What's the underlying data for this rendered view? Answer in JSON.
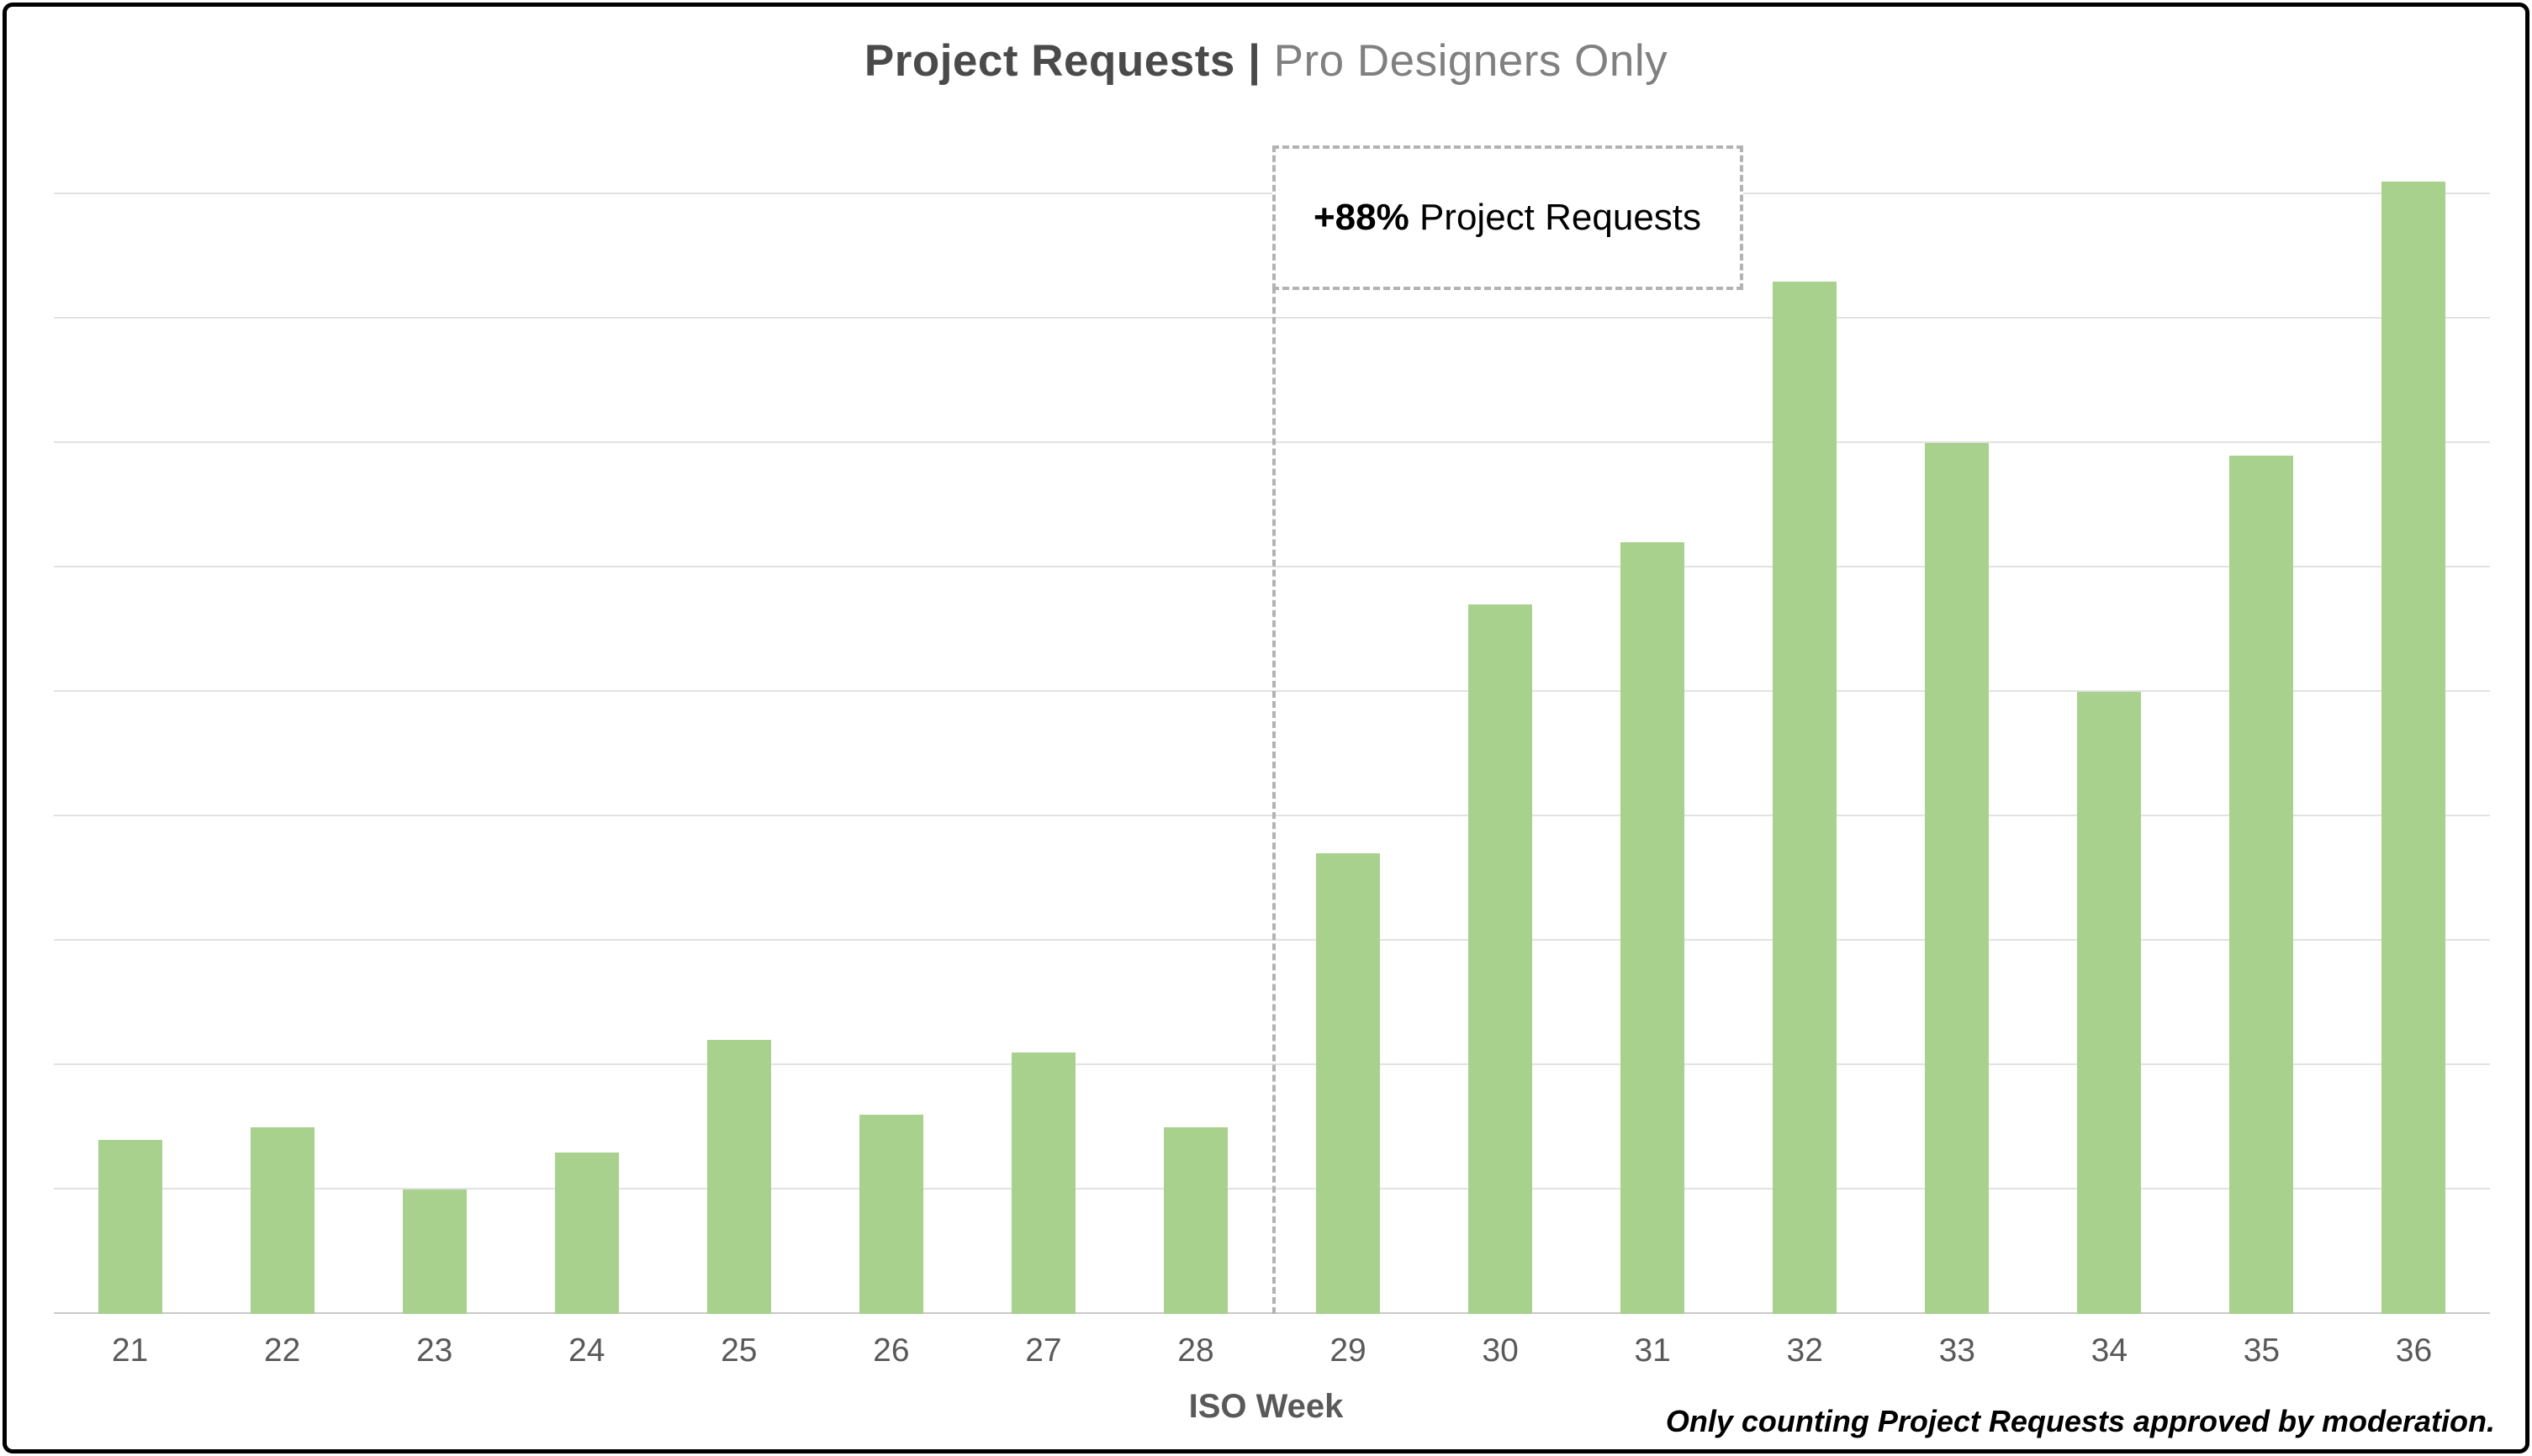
{
  "title": {
    "primary": "Project Requests |",
    "secondary": " Pro Designers Only"
  },
  "annotation": {
    "highlight": "+88%",
    "text": " Project Requests"
  },
  "x_axis_title": "ISO Week",
  "footnote": "Only counting Project Requests approved by moderation.",
  "colors": {
    "bar": "#a9d18e",
    "gridline": "#e2e2e2",
    "baseline": "#c9c9c9",
    "divider": "#b3b3b3",
    "title_primary": "#4a4a4a",
    "title_secondary": "#808080",
    "tick_label": "#595959"
  },
  "chart_data": {
    "type": "bar",
    "title": "Project Requests | Pro Designers Only",
    "xlabel": "ISO Week",
    "ylabel": "",
    "categories": [
      "21",
      "22",
      "23",
      "24",
      "25",
      "26",
      "27",
      "28",
      "29",
      "30",
      "31",
      "32",
      "33",
      "34",
      "35",
      "36"
    ],
    "values": [
      14,
      15,
      10,
      13,
      22,
      16,
      21,
      15,
      37,
      57,
      62,
      83,
      70,
      50,
      69,
      91
    ],
    "ylim": [
      0,
      95
    ],
    "grid_interval": 10,
    "grid_max": 90,
    "grid": true,
    "legend": false,
    "divider_after_index": 7,
    "annotation_label": "+88% Project Requests"
  }
}
